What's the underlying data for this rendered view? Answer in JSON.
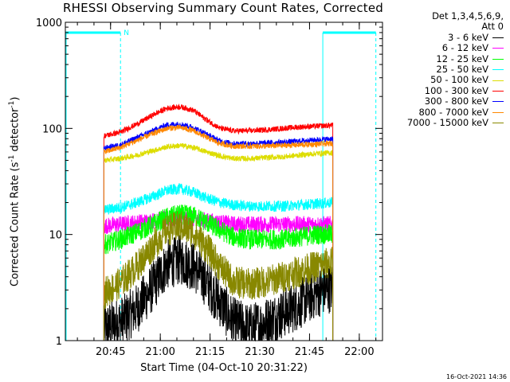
{
  "chart_data": {
    "type": "line",
    "title": "RHESSI Observing Summary Count Rates, Corrected",
    "ylabel": "Corrected Count Rate (s",
    "ylabel_sup": "-1",
    "ylabel_suffix": " detector",
    "ylabel_sup2": "-1",
    "ylabel_end": ")",
    "xlabel": "Start Time (04-Oct-10 20:31:22)",
    "y_scale": "log",
    "ylim": [
      1,
      1000
    ],
    "xlim": [
      "20:31:22",
      "22:07:00"
    ],
    "x_ticks": [
      "20:45",
      "21:00",
      "21:15",
      "21:30",
      "21:45",
      "22:00"
    ],
    "y_ticks": [
      "1",
      "10",
      "100",
      "1000"
    ],
    "legend_header": [
      "Det 1,3,4,5,6,9,",
      "Att 0"
    ],
    "legend_position": "right-outside",
    "time_stamp": "16-Oct-2021 14:36",
    "flag_marker": "N",
    "flags": {
      "night_intervals": [
        [
          "20:31:22",
          "20:48:00"
        ],
        [
          "21:49:00",
          "22:05:00"
        ]
      ],
      "markers": [
        "20:48:00",
        "21:49:00",
        "22:05:00"
      ]
    },
    "data_interval": [
      "20:43:00",
      "21:52:00"
    ],
    "series": [
      {
        "name": "3 - 6 keV",
        "color": "#000000",
        "x": [
          "20:43",
          "20:48",
          "20:53",
          "20:58",
          "21:02",
          "21:06",
          "21:10",
          "21:14",
          "21:18",
          "21:22",
          "21:27",
          "21:32",
          "21:37",
          "21:42",
          "21:47",
          "21:52"
        ],
        "values": [
          1.3,
          1.5,
          2.0,
          3.3,
          5.2,
          5.8,
          5.0,
          3.5,
          2.3,
          1.5,
          1.3,
          1.5,
          1.8,
          2.2,
          2.8,
          3.2
        ]
      },
      {
        "name": "6 - 12 keV",
        "color": "#ff00ff",
        "x": [
          "20:43",
          "20:48",
          "20:53",
          "20:58",
          "21:02",
          "21:06",
          "21:10",
          "21:14",
          "21:18",
          "21:22",
          "21:27",
          "21:32",
          "21:37",
          "21:42",
          "21:47",
          "21:52"
        ],
        "values": [
          12,
          12.5,
          13,
          13.5,
          14,
          14,
          14,
          13.5,
          13,
          12.5,
          12.5,
          12.5,
          12.5,
          12.5,
          12.5,
          12.5
        ]
      },
      {
        "name": "12 - 25 keV",
        "color": "#00ff00",
        "x": [
          "20:43",
          "20:48",
          "20:53",
          "20:58",
          "21:02",
          "21:06",
          "21:10",
          "21:14",
          "21:18",
          "21:22",
          "21:27",
          "21:32",
          "21:37",
          "21:42",
          "21:47",
          "21:52"
        ],
        "values": [
          8,
          9,
          10.5,
          12.5,
          14.5,
          15.5,
          15,
          13,
          11,
          9.5,
          9,
          9,
          9,
          9.5,
          10,
          10
        ]
      },
      {
        "name": "25 - 50 keV",
        "color": "#00ffff",
        "x": [
          "20:43",
          "20:48",
          "20:53",
          "20:58",
          "21:02",
          "21:06",
          "21:10",
          "21:14",
          "21:18",
          "21:22",
          "21:27",
          "21:32",
          "21:37",
          "21:42",
          "21:47",
          "21:52"
        ],
        "values": [
          17,
          18,
          20,
          23,
          26,
          27,
          25,
          22,
          20,
          19,
          18.5,
          18.5,
          18.5,
          19,
          19.5,
          20
        ]
      },
      {
        "name": "50 - 100 keV",
        "color": "#dddd00",
        "x": [
          "20:43",
          "20:48",
          "20:53",
          "20:58",
          "21:02",
          "21:06",
          "21:10",
          "21:14",
          "21:18",
          "21:22",
          "21:27",
          "21:32",
          "21:37",
          "21:42",
          "21:47",
          "21:52"
        ],
        "values": [
          50,
          52,
          56,
          62,
          67,
          69,
          66,
          60,
          55,
          52,
          52,
          53,
          54,
          56,
          58,
          59
        ]
      },
      {
        "name": "100 - 300 keV",
        "color": "#ff0000",
        "x": [
          "20:43",
          "20:48",
          "20:53",
          "20:58",
          "21:02",
          "21:06",
          "21:10",
          "21:14",
          "21:18",
          "21:22",
          "21:27",
          "21:32",
          "21:37",
          "21:42",
          "21:47",
          "21:52"
        ],
        "values": [
          85,
          92,
          110,
          135,
          155,
          160,
          148,
          120,
          100,
          95,
          95,
          97,
          100,
          103,
          105,
          107
        ]
      },
      {
        "name": "300 - 800 keV",
        "color": "#0000ff",
        "x": [
          "20:43",
          "20:48",
          "20:53",
          "20:58",
          "21:02",
          "21:06",
          "21:10",
          "21:14",
          "21:18",
          "21:22",
          "21:27",
          "21:32",
          "21:37",
          "21:42",
          "21:47",
          "21:52"
        ],
        "values": [
          65,
          70,
          82,
          96,
          108,
          110,
          102,
          88,
          76,
          72,
          72,
          73,
          74,
          76,
          78,
          80
        ]
      },
      {
        "name": "800 - 7000 keV",
        "color": "#ff8800",
        "x": [
          "20:43",
          "20:48",
          "20:53",
          "20:58",
          "21:02",
          "21:06",
          "21:10",
          "21:14",
          "21:18",
          "21:22",
          "21:27",
          "21:32",
          "21:37",
          "21:42",
          "21:47",
          "21:52"
        ],
        "values": [
          60,
          66,
          77,
          90,
          100,
          102,
          95,
          82,
          72,
          68,
          68,
          68,
          69,
          70,
          71,
          72
        ]
      },
      {
        "name": "7000 - 15000 keV",
        "color": "#888800",
        "x": [
          "20:43",
          "20:48",
          "20:53",
          "20:58",
          "21:02",
          "21:06",
          "21:10",
          "21:14",
          "21:18",
          "21:22",
          "21:27",
          "21:32",
          "21:37",
          "21:42",
          "21:47",
          "21:52"
        ],
        "values": [
          2.8,
          3.5,
          5.0,
          8.0,
          11,
          12,
          10.5,
          7.5,
          5.0,
          3.6,
          3.4,
          3.6,
          4.0,
          4.5,
          5.0,
          5.5
        ]
      }
    ]
  }
}
